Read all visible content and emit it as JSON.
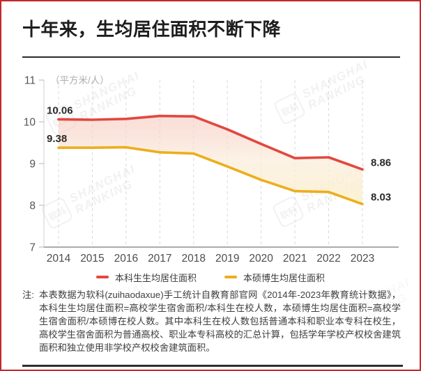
{
  "card": {
    "title": "十年来，生均居住面积不断下降"
  },
  "colors": {
    "border_red": "#c3272b",
    "undergrad_red": "#e2483e",
    "grad_yellow": "#ecae1b"
  },
  "watermark": {
    "logo_text": "软科",
    "line1": "SHANGHAI",
    "line2": "RANKING"
  },
  "chart_data": {
    "type": "line",
    "title": "",
    "unit_label": "（平方米/人）",
    "xlabel": "",
    "ylabel": "平方米/人",
    "categories": [
      "2014",
      "2015",
      "2016",
      "2017",
      "2018",
      "2019",
      "2020",
      "2021",
      "2022",
      "2023"
    ],
    "series": [
      {
        "name": "本科生生均居住面积",
        "color": "#e2483e",
        "values": [
          10.06,
          10.05,
          10.07,
          10.14,
          10.13,
          9.82,
          9.47,
          9.13,
          9.15,
          8.86
        ]
      },
      {
        "name": "本硕博生均居住面积",
        "color": "#ecae1b",
        "values": [
          9.38,
          9.38,
          9.39,
          9.27,
          9.24,
          8.93,
          8.61,
          8.34,
          8.32,
          8.03
        ]
      }
    ],
    "point_labels": [
      {
        "series": 0,
        "index": 0,
        "text": "10.06"
      },
      {
        "series": 1,
        "index": 0,
        "text": "9.38"
      },
      {
        "series": 0,
        "index": 9,
        "text": "8.86"
      },
      {
        "series": 1,
        "index": 9,
        "text": "8.03"
      }
    ],
    "ylim": [
      7,
      11
    ],
    "yticks": [
      7,
      8,
      9,
      10,
      11
    ],
    "grid": "vertical-dashed",
    "legend_position": "bottom",
    "area_fill_between_series": true
  },
  "note": {
    "label": "注:",
    "text": "本表数据为软科(zuihaodaxue)手工统计自教育部官网《2014年-2023年教育统计数据》，本科生生均居住面积=高校学生宿舍面积/本科生在校人数，本硕博生均居住面积=高校学生宿舍面积/本硕博在校人数。其中本科生在校人数包括普通本科和职业本专科在校生，高校学生宿舍面积为普通高校、职业本专科高校的汇总计算，包括学年学校产权校舍建筑面积和独立使用非学校产权校舍建筑面积。"
  }
}
